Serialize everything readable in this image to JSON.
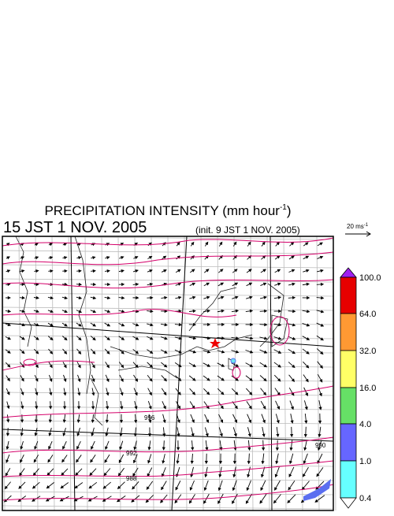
{
  "title": {
    "main": "PRECIPITATION INTENSITY (mm hour",
    "exponent": "-1",
    "close": ")"
  },
  "valid_time": "15 JST 1 NOV. 2005",
  "init_time": "(init. 9 JST 1 NOV. 2005)",
  "reference_vector": {
    "label": "20 ms",
    "exponent": "-1"
  },
  "colorbar": {
    "labels": [
      "100.0",
      "64.0",
      "32.0",
      "16.0",
      "4.0",
      "1.0",
      "0.4"
    ]
  },
  "contour_labels": [
    "996",
    "992",
    "988",
    "990"
  ]
}
